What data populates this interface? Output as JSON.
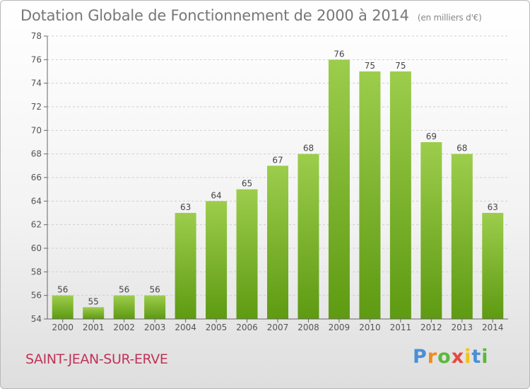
{
  "header": {
    "title": "Dotation Globale de Fonctionnement de 2000 à 2014",
    "unit_note": "(en milliers d'€)"
  },
  "footer": {
    "commune": "SAINT-JEAN-SUR-ERVE",
    "brand_letters": [
      "P",
      "r",
      "o",
      "x",
      "i",
      "t",
      "i"
    ],
    "brand_colors": [
      "#4a8fd6",
      "#f08a1e",
      "#5cb83c",
      "#e8483c",
      "#f2c21b",
      "#4a8fd6",
      "#5cb83c"
    ]
  },
  "chart_data": {
    "type": "bar",
    "title": "Dotation Globale de Fonctionnement de 2000 à 2014",
    "subtitle": "(en milliers d'€)",
    "xlabel": "",
    "ylabel": "",
    "categories": [
      "2000",
      "2001",
      "2002",
      "2003",
      "2004",
      "2005",
      "2006",
      "2007",
      "2008",
      "2009",
      "2010",
      "2011",
      "2012",
      "2013",
      "2014"
    ],
    "values": [
      56,
      55,
      56,
      56,
      63,
      64,
      65,
      67,
      68,
      76,
      75,
      75,
      69,
      68,
      63
    ],
    "ylim": [
      54,
      78
    ],
    "yticks": [
      54,
      56,
      58,
      60,
      62,
      64,
      66,
      68,
      70,
      72,
      74,
      76,
      78
    ],
    "grid": true,
    "bar_color_top": "#9ccd4c",
    "bar_color_bottom": "#5e9a12"
  }
}
